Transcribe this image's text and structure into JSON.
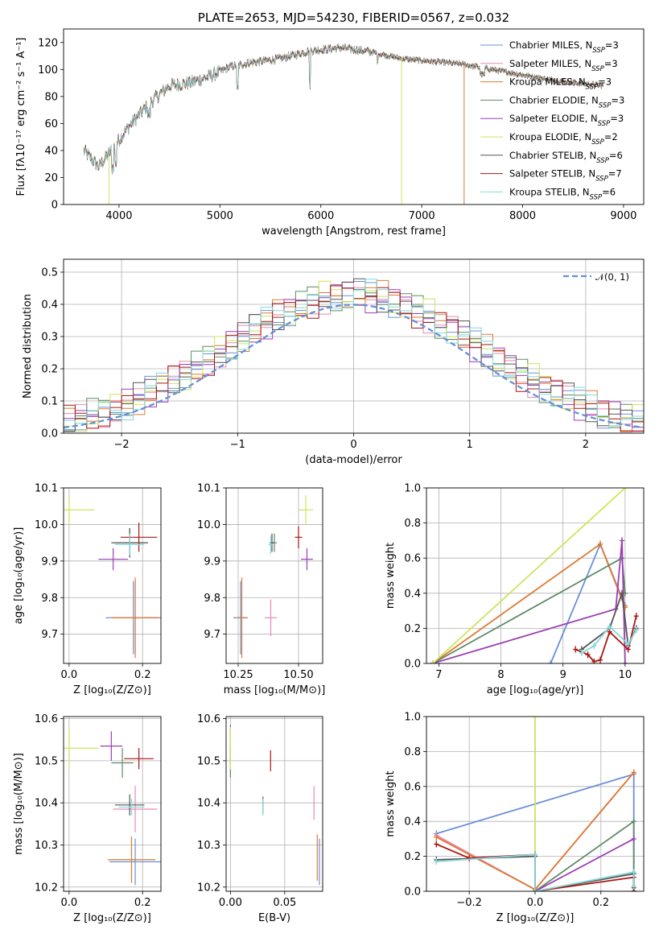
{
  "colors": {
    "chabrier_miles": "#6b8fd8",
    "salpeter_miles": "#e888b8",
    "kroupa_miles": "#dd7a33",
    "chabrier_elodie": "#5e8a66",
    "salpeter_elodie": "#9b3fb5",
    "kroupa_elodie": "#cfe45a",
    "chabrier_stelib": "#555555",
    "salpeter_stelib": "#aa1515",
    "kroupa_stelib": "#86d8d8",
    "normal": "#5f8fd9"
  },
  "chart_data": [
    {
      "id": "spectrum",
      "type": "line",
      "title": "PLATE=2653, MJD=54230, FIBERID=0567, z=0.032",
      "xlabel": "wavelength [Angstrom, rest frame]",
      "ylabel": "Flux [fλ10⁻¹⁷ erg cm⁻² s⁻¹ A⁻¹]",
      "xlim": [
        3450,
        9200
      ],
      "ylim": [
        0,
        130
      ],
      "xticks": [
        4000,
        5000,
        6000,
        7000,
        8000,
        9000
      ],
      "yticks": [
        0,
        20,
        40,
        60,
        80,
        100,
        120
      ],
      "grid": false,
      "legend_position": "top-right",
      "x_range": [
        3650,
        8800
      ],
      "anchors": [
        [
          3650,
          40
        ],
        [
          3800,
          28
        ],
        [
          3900,
          38
        ],
        [
          4000,
          48
        ],
        [
          4100,
          58
        ],
        [
          4300,
          75
        ],
        [
          4500,
          88
        ],
        [
          4700,
          90
        ],
        [
          4900,
          95
        ],
        [
          5100,
          102
        ],
        [
          5300,
          105
        ],
        [
          5600,
          108
        ],
        [
          5900,
          114
        ],
        [
          6200,
          116
        ],
        [
          6500,
          113
        ],
        [
          6800,
          108
        ],
        [
          7100,
          106
        ],
        [
          7400,
          104
        ],
        [
          7700,
          100
        ],
        [
          8000,
          96
        ],
        [
          8300,
          92
        ],
        [
          8800,
          88
        ]
      ],
      "legend": [
        {
          "label": "Chabrier MILES, N",
          "sub": "SSP",
          "suffix": "=3",
          "color_key": "chabrier_miles"
        },
        {
          "label": "Salpeter MILES, N",
          "sub": "SSP",
          "suffix": "=3",
          "color_key": "salpeter_miles"
        },
        {
          "label": "Kroupa MILES, N",
          "sub": "SSP",
          "suffix": "=3",
          "color_key": "kroupa_miles"
        },
        {
          "label": "Chabrier ELODIE, N",
          "sub": "SSP",
          "suffix": "=3",
          "color_key": "chabrier_elodie"
        },
        {
          "label": "Salpeter ELODIE, N",
          "sub": "SSP",
          "suffix": "=3",
          "color_key": "salpeter_elodie"
        },
        {
          "label": "Kroupa ELODIE, N",
          "sub": "SSP",
          "suffix": "=2",
          "color_key": "kroupa_elodie"
        },
        {
          "label": "Chabrier STELIB, N",
          "sub": "SSP",
          "suffix": "=6",
          "color_key": "chabrier_stelib"
        },
        {
          "label": "Salpeter STELIB, N",
          "sub": "SSP",
          "suffix": "=7",
          "color_key": "salpeter_stelib"
        },
        {
          "label": "Kroupa STELIB, N",
          "sub": "SSP",
          "suffix": "=6",
          "color_key": "kroupa_stelib"
        }
      ],
      "drop_lines": [
        {
          "x": 3900,
          "color_key": "kroupa_elodie"
        },
        {
          "x": 6800,
          "color_key": "kroupa_elodie"
        },
        {
          "x": 7420,
          "color_key": "kroupa_miles"
        }
      ]
    },
    {
      "id": "histogram",
      "type": "histogram",
      "xlabel": "(data-model)/error",
      "ylabel": "Normed distribution",
      "xlim": [
        -2.5,
        2.5
      ],
      "ylim": [
        0,
        0.54
      ],
      "xticks": [
        -2,
        -1,
        0,
        1,
        2
      ],
      "yticks": [
        0.0,
        0.1,
        0.2,
        0.3,
        0.4,
        0.5
      ],
      "grid": true,
      "bin_width": 0.1,
      "legend": [
        {
          "label": "𝒩(0, 1)",
          "color_key": "normal"
        }
      ],
      "legend_position": "top-right",
      "normal_curve": {
        "mean": 0,
        "std": 1
      }
    },
    {
      "id": "age_vs_Z",
      "type": "scatter",
      "xlabel": "Z [log₁₀(Z/Z⊙)]",
      "ylabel": "age  [log₁₀(age/yr)]",
      "xlim": [
        -0.015,
        0.25
      ],
      "ylim": [
        9.62,
        10.1
      ],
      "xticks": [
        0.0,
        0.2
      ],
      "yticks": [
        9.7,
        9.8,
        9.9,
        10.0,
        10.1
      ],
      "grid": true,
      "points": [
        {
          "key": "chabrier_miles",
          "x": 0.175,
          "y": 9.745,
          "xerr": 0.075,
          "yerr": 0.1
        },
        {
          "key": "salpeter_miles",
          "x": 0.18,
          "y": 9.745,
          "xerr": 0.06,
          "yerr": 0.1
        },
        {
          "key": "kroupa_miles",
          "x": 0.18,
          "y": 9.745,
          "xerr": 0.065,
          "yerr": 0.11
        },
        {
          "key": "chabrier_elodie",
          "x": 0.165,
          "y": 9.95,
          "xerr": 0.04,
          "yerr": 0.04
        },
        {
          "key": "salpeter_elodie",
          "x": 0.12,
          "y": 9.905,
          "xerr": 0.04,
          "yerr": 0.03
        },
        {
          "key": "kroupa_elodie",
          "x": 0.0,
          "y": 10.04,
          "xerr": 0.07,
          "yerr": 0.04
        },
        {
          "key": "chabrier_stelib",
          "x": 0.165,
          "y": 9.95,
          "xerr": 0.05,
          "yerr": 0.04
        },
        {
          "key": "salpeter_stelib",
          "x": 0.19,
          "y": 9.965,
          "xerr": 0.05,
          "yerr": 0.04
        },
        {
          "key": "kroupa_stelib",
          "x": 0.165,
          "y": 9.945,
          "xerr": 0.04,
          "yerr": 0.03
        }
      ]
    },
    {
      "id": "age_vs_mass",
      "type": "scatter",
      "xlabel": "mass [log₁₀(M/M⊙)]",
      "ylabel": "",
      "xlim": [
        10.2,
        10.6
      ],
      "ylim": [
        9.62,
        10.1
      ],
      "xticks": [
        10.25,
        10.5
      ],
      "yticks": [
        9.7,
        9.8,
        9.9,
        10.0,
        10.1
      ],
      "grid": true,
      "points": [
        {
          "key": "chabrier_miles",
          "x": 10.26,
          "y": 9.745,
          "xerr": 0.03,
          "yerr": 0.1
        },
        {
          "key": "salpeter_miles",
          "x": 10.385,
          "y": 9.745,
          "xerr": 0.025,
          "yerr": 0.05
        },
        {
          "key": "kroupa_miles",
          "x": 10.265,
          "y": 9.745,
          "xerr": 0.02,
          "yerr": 0.11
        },
        {
          "key": "chabrier_elodie",
          "x": 10.4,
          "y": 9.95,
          "xerr": 0.01,
          "yerr": 0.025
        },
        {
          "key": "salpeter_elodie",
          "x": 10.535,
          "y": 9.905,
          "xerr": 0.025,
          "yerr": 0.03
        },
        {
          "key": "kroupa_elodie",
          "x": 10.53,
          "y": 10.04,
          "xerr": 0.03,
          "yerr": 0.04
        },
        {
          "key": "chabrier_stelib",
          "x": 10.39,
          "y": 9.95,
          "xerr": 0.01,
          "yerr": 0.025
        },
        {
          "key": "salpeter_stelib",
          "x": 10.5,
          "y": 9.965,
          "xerr": 0.015,
          "yerr": 0.03
        },
        {
          "key": "kroupa_stelib",
          "x": 10.385,
          "y": 9.945,
          "xerr": 0.01,
          "yerr": 0.025
        }
      ]
    },
    {
      "id": "weight_vs_age",
      "type": "line",
      "xlabel": "age  [log₁₀(age/yr)]",
      "ylabel": "mass weight",
      "xlim": [
        6.8,
        10.3
      ],
      "ylim": [
        0,
        1
      ],
      "xticks": [
        7,
        8,
        9,
        10
      ],
      "yticks": [
        0.0,
        0.2,
        0.4,
        0.6,
        0.8,
        1.0
      ],
      "grid": true,
      "series": [
        {
          "key": "chabrier_miles",
          "points": [
            [
              8.8,
              0.0
            ],
            [
              9.6,
              0.68
            ],
            [
              10.0,
              0.33
            ]
          ]
        },
        {
          "key": "salpeter_miles",
          "points": [
            [
              9.6,
              0.68
            ],
            [
              10.0,
              0.32
            ]
          ]
        },
        {
          "key": "kroupa_miles",
          "points": [
            [
              6.9,
              0.0
            ],
            [
              9.6,
              0.68
            ],
            [
              10.0,
              0.32
            ]
          ]
        },
        {
          "key": "chabrier_elodie",
          "points": [
            [
              6.9,
              0.0
            ],
            [
              9.95,
              0.6
            ],
            [
              10.0,
              0.4
            ]
          ]
        },
        {
          "key": "salpeter_elodie",
          "points": [
            [
              6.9,
              0.0
            ],
            [
              9.85,
              0.31
            ],
            [
              9.95,
              0.7
            ],
            [
              10.0,
              0.0
            ]
          ]
        },
        {
          "key": "kroupa_elodie",
          "points": [
            [
              6.9,
              0.0
            ],
            [
              10.0,
              1.0
            ]
          ]
        },
        {
          "key": "chabrier_stelib",
          "points": [
            [
              9.3,
              0.08
            ],
            [
              9.75,
              0.2
            ],
            [
              9.95,
              0.4
            ],
            [
              10.05,
              0.1
            ],
            [
              10.18,
              0.2
            ]
          ]
        },
        {
          "key": "salpeter_stelib",
          "points": [
            [
              9.2,
              0.08
            ],
            [
              9.4,
              0.05
            ],
            [
              9.5,
              0.01
            ],
            [
              9.6,
              0.02
            ],
            [
              9.75,
              0.18
            ],
            [
              10.05,
              0.08
            ],
            [
              10.18,
              0.27
            ]
          ]
        },
        {
          "key": "kroupa_stelib",
          "points": [
            [
              9.3,
              0.06
            ],
            [
              9.5,
              0.1
            ],
            [
              9.75,
              0.21
            ],
            [
              10.05,
              0.11
            ],
            [
              10.18,
              0.19
            ]
          ]
        }
      ]
    },
    {
      "id": "mass_vs_Z",
      "type": "scatter",
      "xlabel": "Z [log₁₀(Z/Z⊙)]",
      "ylabel": "mass [log₁₀(M/M⊙)]",
      "xlim": [
        -0.015,
        0.25
      ],
      "ylim": [
        10.19,
        10.605
      ],
      "xticks": [
        0.0,
        0.2
      ],
      "yticks": [
        10.2,
        10.3,
        10.4,
        10.5,
        10.6
      ],
      "grid": true,
      "points": [
        {
          "key": "chabrier_miles",
          "x": 0.18,
          "y": 10.26,
          "xerr": 0.07,
          "yerr": 0.055
        },
        {
          "key": "salpeter_miles",
          "x": 0.18,
          "y": 10.385,
          "xerr": 0.06,
          "yerr": 0.055
        },
        {
          "key": "kroupa_miles",
          "x": 0.17,
          "y": 10.265,
          "xerr": 0.065,
          "yerr": 0.055
        },
        {
          "key": "chabrier_elodie",
          "x": 0.145,
          "y": 10.495,
          "xerr": 0.03,
          "yerr": 0.035
        },
        {
          "key": "salpeter_elodie",
          "x": 0.115,
          "y": 10.535,
          "xerr": 0.03,
          "yerr": 0.035
        },
        {
          "key": "kroupa_elodie",
          "x": 0.0,
          "y": 10.53,
          "xerr": 0.08,
          "yerr": 0.05
        },
        {
          "key": "chabrier_stelib",
          "x": 0.165,
          "y": 10.395,
          "xerr": 0.04,
          "yerr": 0.025
        },
        {
          "key": "salpeter_stelib",
          "x": 0.19,
          "y": 10.505,
          "xerr": 0.04,
          "yerr": 0.025
        },
        {
          "key": "kroupa_stelib",
          "x": 0.17,
          "y": 10.39,
          "xerr": 0.035,
          "yerr": 0.02
        }
      ]
    },
    {
      "id": "mass_vs_ebv",
      "type": "scatter",
      "xlabel": "E(B-V)",
      "ylabel": "",
      "xlim": [
        -0.004,
        0.085
      ],
      "ylim": [
        10.19,
        10.605
      ],
      "xticks": [
        0.0,
        0.05
      ],
      "yticks": [
        10.2,
        10.3,
        10.4,
        10.5,
        10.6
      ],
      "grid": true,
      "points": [
        {
          "key": "chabrier_miles",
          "x": 0.082,
          "y": 10.26,
          "xerr": 0,
          "yerr": 0.055
        },
        {
          "key": "salpeter_miles",
          "x": 0.077,
          "y": 10.4,
          "xerr": 0,
          "yerr": 0.04
        },
        {
          "key": "kroupa_miles",
          "x": 0.08,
          "y": 10.27,
          "xerr": 0,
          "yerr": 0.055
        },
        {
          "key": "chabrier_elodie",
          "x": 0.0,
          "y": 10.495,
          "xerr": 0,
          "yerr": 0.035
        },
        {
          "key": "salpeter_elodie",
          "x": 0.0,
          "y": 10.54,
          "xerr": 0,
          "yerr": 0.045
        },
        {
          "key": "kroupa_elodie",
          "x": 0.0,
          "y": 10.53,
          "xerr": 0,
          "yerr": 0.05
        },
        {
          "key": "chabrier_stelib",
          "x": 0.03,
          "y": 10.395,
          "xerr": 0,
          "yerr": 0.02
        },
        {
          "key": "salpeter_stelib",
          "x": 0.037,
          "y": 10.5,
          "xerr": 0,
          "yerr": 0.025
        },
        {
          "key": "kroupa_stelib",
          "x": 0.03,
          "y": 10.39,
          "xerr": 0,
          "yerr": 0.02
        }
      ]
    },
    {
      "id": "weight_vs_Z",
      "type": "line",
      "xlabel": "Z [log₁₀(Z/Z⊙)]",
      "ylabel": "mass weight",
      "xlim": [
        -0.33,
        0.33
      ],
      "ylim": [
        0,
        1
      ],
      "xticks": [
        -0.2,
        0.0,
        0.2
      ],
      "yticks": [
        0.0,
        0.2,
        0.4,
        0.6,
        0.8,
        1.0
      ],
      "grid": true,
      "series": [
        {
          "key": "chabrier_miles",
          "points": [
            [
              -0.3,
              0.33
            ],
            [
              0.3,
              0.67
            ],
            [
              0.3,
              0.0
            ]
          ]
        },
        {
          "key": "salpeter_miles",
          "points": [
            [
              -0.3,
              0.32
            ],
            [
              0.0,
              0.01
            ],
            [
              0.3,
              0.68
            ]
          ]
        },
        {
          "key": "kroupa_miles",
          "points": [
            [
              -0.3,
              0.31
            ],
            [
              0.0,
              0.01
            ],
            [
              0.3,
              0.68
            ]
          ]
        },
        {
          "key": "chabrier_elodie",
          "points": [
            [
              0.0,
              0.0
            ],
            [
              0.3,
              0.4
            ],
            [
              0.3,
              0.0
            ]
          ]
        },
        {
          "key": "salpeter_elodie",
          "points": [
            [
              0.0,
              0.0
            ],
            [
              0.3,
              0.3
            ]
          ]
        },
        {
          "key": "kroupa_elodie",
          "points": [
            [
              0.0,
              1.0
            ],
            [
              0.0,
              0.0
            ]
          ]
        },
        {
          "key": "chabrier_stelib",
          "points": [
            [
              -0.3,
              0.18
            ],
            [
              0.0,
              0.2
            ],
            [
              0.0,
              0.0
            ],
            [
              0.3,
              0.1
            ],
            [
              0.3,
              0.02
            ]
          ]
        },
        {
          "key": "salpeter_stelib",
          "points": [
            [
              -0.3,
              0.27
            ],
            [
              -0.2,
              0.19
            ],
            [
              0.0,
              0.21
            ],
            [
              0.0,
              0.0
            ],
            [
              0.3,
              0.08
            ],
            [
              0.3,
              0.0
            ]
          ]
        },
        {
          "key": "kroupa_stelib",
          "points": [
            [
              -0.3,
              0.17
            ],
            [
              0.0,
              0.21
            ],
            [
              0.0,
              0.0
            ],
            [
              0.3,
              0.11
            ],
            [
              0.3,
              0.03
            ]
          ]
        }
      ]
    }
  ]
}
